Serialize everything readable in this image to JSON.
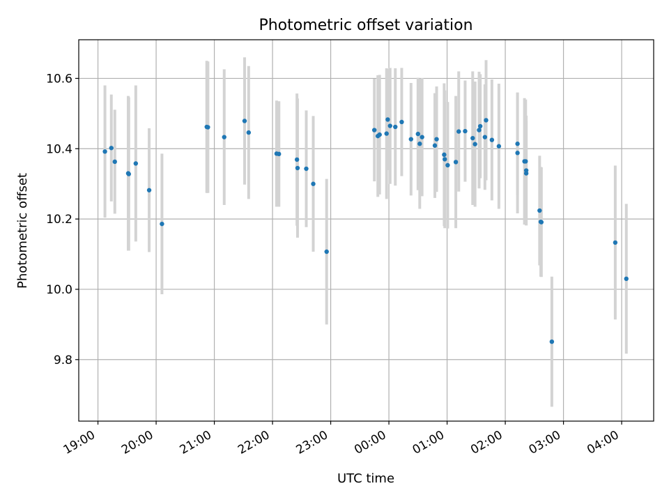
{
  "chart_data": {
    "type": "scatter",
    "title": "Photometric offset variation",
    "xlabel": "UTC time",
    "ylabel": "Photometric offset",
    "x_ticks": [
      "19:00",
      "20:00",
      "21:00",
      "22:00",
      "23:00",
      "00:00",
      "01:00",
      "02:00",
      "03:00",
      "04:00"
    ],
    "y_ticks": [
      "9.8",
      "10.0",
      "10.2",
      "10.4",
      "10.6"
    ],
    "xlim": [
      18.67,
      28.55
    ],
    "ylim": [
      9.625,
      10.71
    ],
    "grid": true,
    "colors": {
      "point": "#1f77b4",
      "errorbar": "#d3d3d3",
      "grid": "#b0b0b0"
    },
    "series": [
      {
        "x": [
          19.12,
          19.23,
          19.29,
          19.52,
          19.53,
          19.65,
          19.88,
          20.1,
          20.87,
          20.89,
          21.17,
          21.52,
          21.59,
          22.07,
          22.11,
          22.42,
          22.43,
          22.58,
          22.7,
          22.93,
          23.75,
          23.81,
          23.84,
          23.96,
          23.98,
          24.02,
          24.11,
          24.22,
          24.38,
          24.5,
          24.53,
          24.57,
          24.79,
          24.82,
          24.95,
          24.96,
          25.01,
          25.15,
          25.2,
          25.31,
          25.44,
          25.48,
          25.55,
          25.57,
          25.65,
          25.67,
          25.77,
          25.89,
          26.21,
          26.21,
          26.33,
          26.35,
          26.36,
          26.36,
          26.59,
          26.61,
          26.62,
          26.8,
          27.89,
          28.08
        ],
        "y": [
          10.392,
          10.402,
          10.363,
          10.33,
          10.328,
          10.358,
          10.282,
          10.186,
          10.462,
          10.461,
          10.433,
          10.479,
          10.446,
          10.386,
          10.385,
          10.369,
          10.345,
          10.343,
          10.3,
          10.107,
          10.453,
          10.436,
          10.44,
          10.443,
          10.483,
          10.465,
          10.462,
          10.476,
          10.427,
          10.442,
          10.414,
          10.433,
          10.409,
          10.427,
          10.383,
          10.37,
          10.353,
          10.362,
          10.449,
          10.45,
          10.43,
          10.413,
          10.453,
          10.464,
          10.433,
          10.481,
          10.425,
          10.407,
          10.388,
          10.414,
          10.364,
          10.364,
          10.338,
          10.33,
          10.224,
          10.192,
          10.191,
          9.851,
          10.133,
          10.03
        ],
        "err": [
          0.188,
          0.152,
          0.148,
          0.22,
          0.218,
          0.222,
          0.176,
          0.2,
          0.188,
          0.187,
          0.193,
          0.181,
          0.189,
          0.151,
          0.15,
          0.188,
          0.198,
          0.166,
          0.193,
          0.207,
          0.146,
          0.173,
          0.17,
          0.186,
          0.144,
          0.165,
          0.167,
          0.154,
          0.16,
          0.16,
          0.185,
          0.168,
          0.149,
          0.15,
          0.203,
          0.196,
          0.18,
          0.188,
          0.171,
          0.144,
          0.19,
          0.178,
          0.166,
          0.148,
          0.15,
          0.171,
          0.172,
          0.178,
          0.172,
          0.145,
          0.18,
          0.176,
          0.156,
          0.148,
          0.156,
          0.156,
          0.156,
          0.185,
          0.219,
          0.213
        ]
      }
    ]
  }
}
